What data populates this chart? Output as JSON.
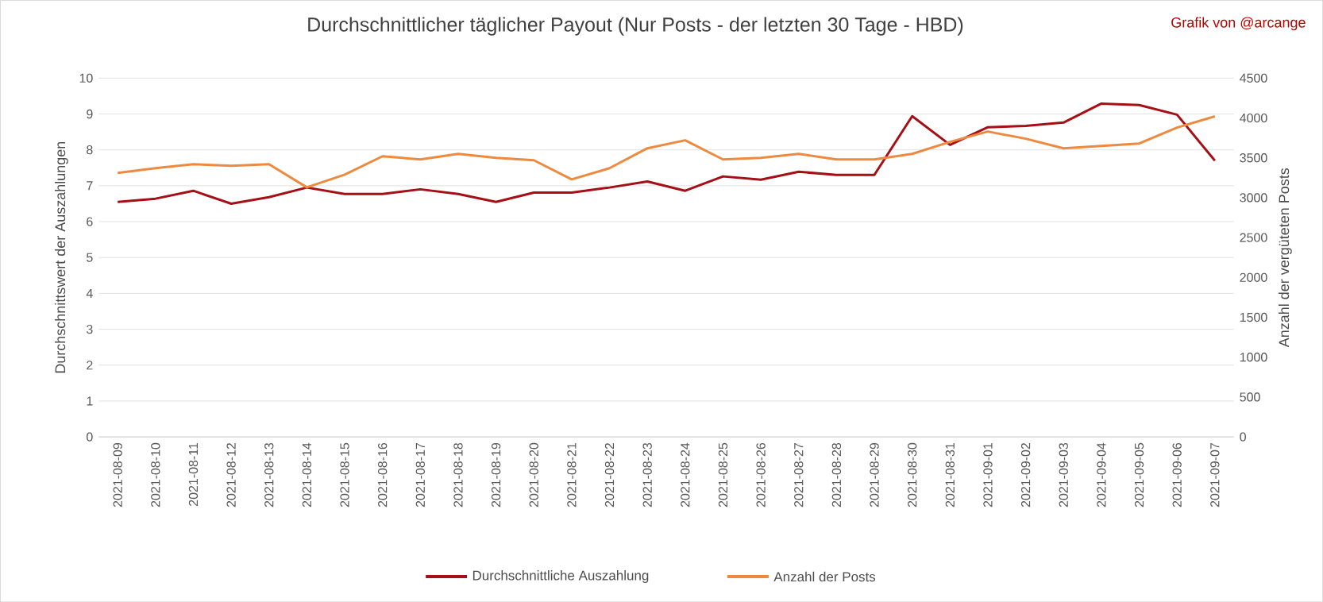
{
  "chart_data": {
    "type": "line",
    "title": "Durchschnittlicher täglicher Payout (Nur Posts - der letzten 30 Tage - HBD)",
    "annotations": [
      "Grafik von @arcange"
    ],
    "ylabel": "Durchschnittswert der Auszahlungen",
    "y2label": "Anzahl der vergüteten  Posts",
    "categories": [
      "2021-08-09",
      "2021-08-10",
      "2021-08-11",
      "2021-08-12",
      "2021-08-13",
      "2021-08-14",
      "2021-08-15",
      "2021-08-16",
      "2021-08-17",
      "2021-08-18",
      "2021-08-19",
      "2021-08-20",
      "2021-08-21",
      "2021-08-22",
      "2021-08-23",
      "2021-08-24",
      "2021-08-25",
      "2021-08-26",
      "2021-08-27",
      "2021-08-28",
      "2021-08-29",
      "2021-08-30",
      "2021-08-31",
      "2021-09-01",
      "2021-09-02",
      "2021-09-03",
      "2021-09-04",
      "2021-09-05",
      "2021-09-06",
      "2021-09-07"
    ],
    "series": [
      {
        "name": "Durchschnittliche Auszahlung",
        "color": "#a50f15",
        "values": [
          6.55,
          6.64,
          6.86,
          6.5,
          6.68,
          6.95,
          6.77,
          6.77,
          6.9,
          6.77,
          6.55,
          6.81,
          6.81,
          6.95,
          7.12,
          6.86,
          7.26,
          7.17,
          7.39,
          7.3,
          7.3,
          8.94,
          8.14,
          8.63,
          8.67,
          8.76,
          9.29,
          9.25,
          8.98,
          7.7
        ]
      },
      {
        "name": "Anzahl der Posts",
        "color": "#ed8a3f",
        "axis": "y2",
        "values": [
          3310,
          3370,
          3420,
          3400,
          3420,
          3130,
          3290,
          3520,
          3480,
          3550,
          3500,
          3470,
          3230,
          3370,
          3620,
          3720,
          3480,
          3500,
          3550,
          3480,
          3480,
          3550,
          3700,
          3830,
          3740,
          3620,
          3650,
          3680,
          3880,
          4020
        ]
      }
    ],
    "ylim": [
      0,
      10
    ],
    "yticks": [
      0,
      1,
      2,
      3,
      4,
      5,
      6,
      7,
      8,
      9,
      10
    ],
    "y2lim": [
      0,
      4500
    ],
    "y2ticks": [
      0,
      500,
      1000,
      1500,
      2000,
      2500,
      3000,
      3500,
      4000,
      4500
    ],
    "grid": "y",
    "legend": "bottom",
    "marker": "none",
    "line_style": "solid"
  }
}
